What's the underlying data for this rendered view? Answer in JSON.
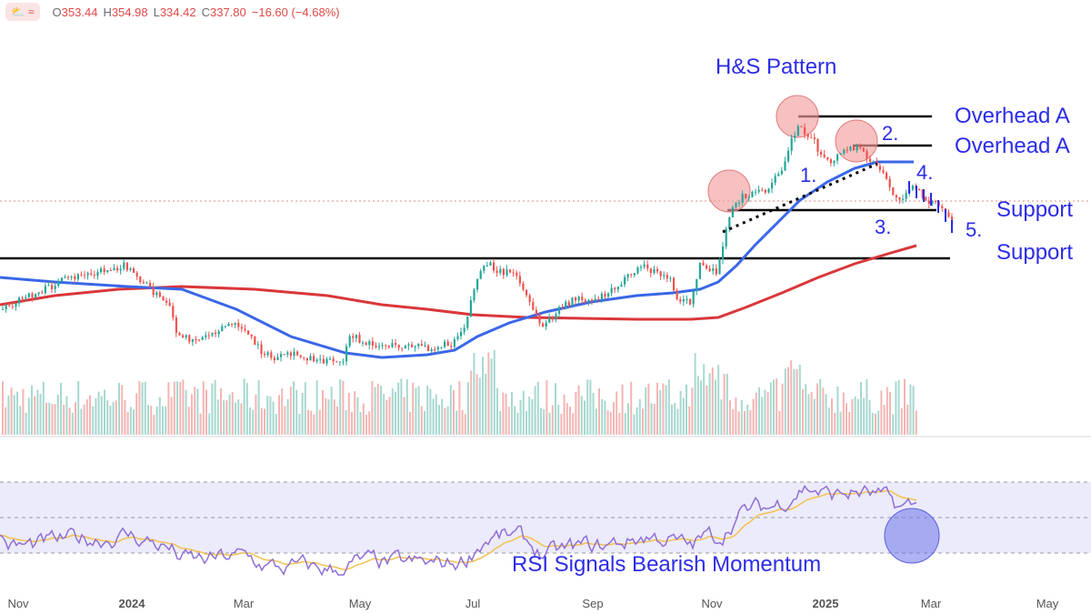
{
  "header": {
    "app_icons": [
      "sun-cloud-icon",
      "wave-icon"
    ],
    "ohlc": [
      {
        "key": "O",
        "value": "353.44"
      },
      {
        "key": "H",
        "value": "354.98"
      },
      {
        "key": "L",
        "value": "334.42"
      },
      {
        "key": "C",
        "value": "337.80"
      },
      {
        "key": "",
        "value": "−16.60 (−4.68%)"
      }
    ]
  },
  "chart_data": {
    "type": "candlestick",
    "title": "H&S Pattern",
    "x_tick_labels": [
      "Nov",
      "2024",
      "Mar",
      "May",
      "Jul",
      "Sep",
      "Nov",
      "2025",
      "Mar",
      "May"
    ],
    "annotations": {
      "pattern_labels": [
        "1.",
        "2.",
        "3.",
        "4.",
        "5."
      ],
      "resistance_labels": [
        "Overhead A",
        "Overhead A"
      ],
      "support_labels": [
        "Support",
        "Support"
      ],
      "rsi_note": "RSI Signals Bearish Momentum"
    },
    "colors": {
      "up": "#26a69a",
      "down": "#ef5350",
      "ma_fast": "#3a67e8",
      "ma_slow": "#d9373a",
      "rsi_line": "#8e6fd6",
      "rsi_signal": "#f2c14e",
      "annotation_text": "#2c2ce8",
      "circle_fill": "#f3a0a0",
      "rsi_circle": "#6e74ea"
    },
    "rsi": {
      "levels": [
        70,
        50,
        30
      ],
      "band": [
        30,
        70
      ]
    }
  }
}
